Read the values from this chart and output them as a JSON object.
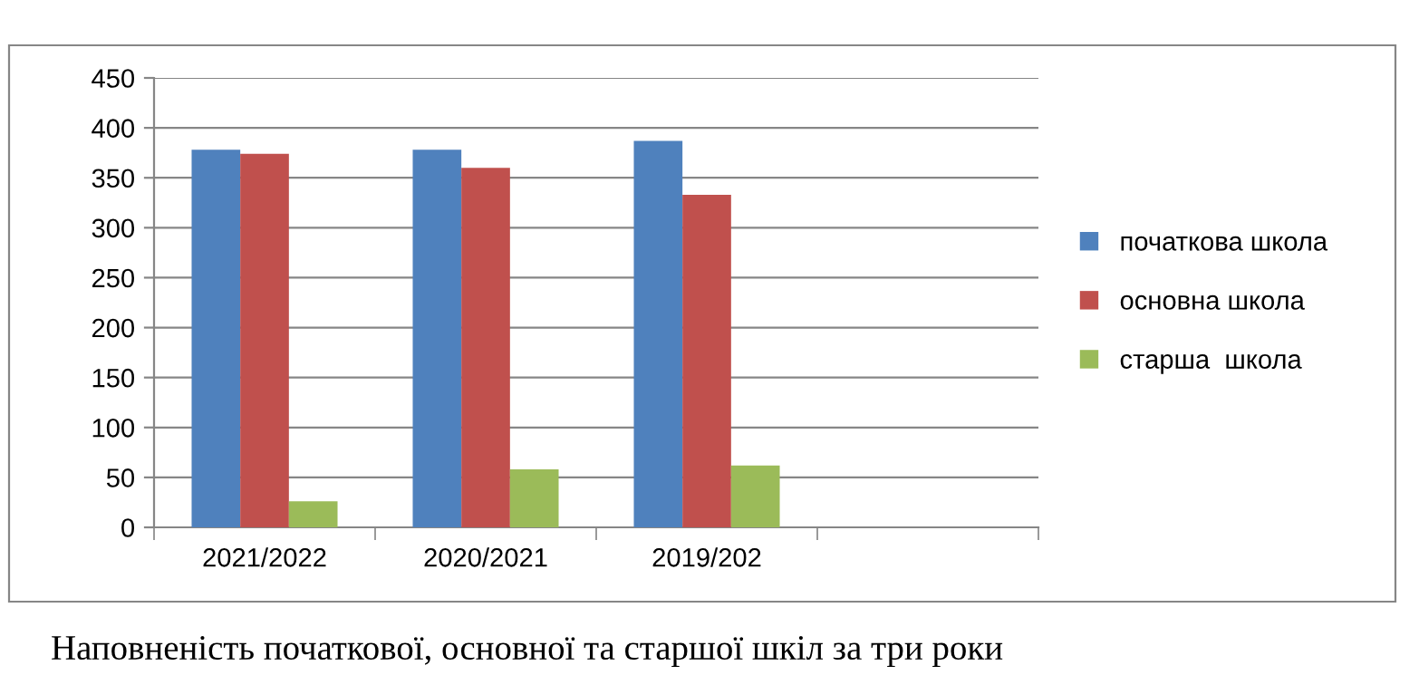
{
  "chart_data": {
    "type": "bar",
    "categories": [
      "2021/2022",
      "2020/2021",
      "2019/202",
      null
    ],
    "series": [
      {
        "name": "початкова школа",
        "color": "#4f81bd",
        "values": [
          378,
          378,
          387,
          null
        ]
      },
      {
        "name": "основна школа",
        "color": "#c0504d",
        "values": [
          374,
          360,
          333,
          null
        ]
      },
      {
        "name": "старша  школа",
        "color": "#9bbb59",
        "values": [
          26,
          58,
          62,
          null
        ]
      }
    ],
    "ylim": [
      0,
      450
    ],
    "yticks": [
      0,
      50,
      100,
      150,
      200,
      250,
      300,
      350,
      400,
      450
    ],
    "grid": "y",
    "legend": "right",
    "annotations": [
      "Наповненість початкової, основної та старшої шкіл за три роки"
    ]
  }
}
